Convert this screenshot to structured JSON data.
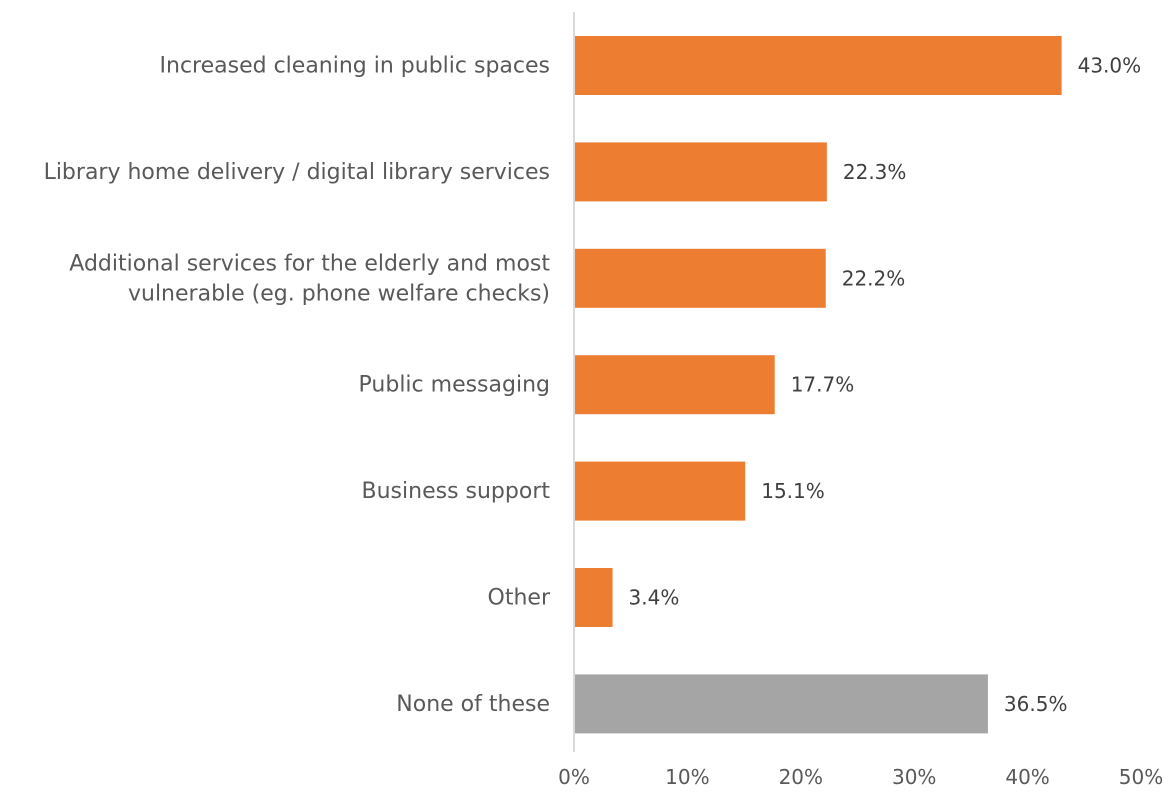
{
  "chart_data": {
    "type": "bar",
    "orientation": "horizontal",
    "categories": [
      [
        "Increased cleaning in public spaces"
      ],
      [
        "Library home delivery / digital library services"
      ],
      [
        "Additional services for the elderly and most",
        "vulnerable (eg. phone welfare checks)"
      ],
      [
        "Public messaging"
      ],
      [
        "Business support"
      ],
      [
        "Other"
      ],
      [
        "None of these"
      ]
    ],
    "values": [
      43.0,
      22.3,
      22.2,
      17.7,
      15.1,
      3.4,
      36.5
    ],
    "value_labels": [
      "43.0%",
      "22.3%",
      "22.2%",
      "17.7%",
      "15.1%",
      "3.4%",
      "36.5%"
    ],
    "bar_colors": [
      "#ED7D31",
      "#ED7D31",
      "#ED7D31",
      "#ED7D31",
      "#ED7D31",
      "#ED7D31",
      "#A5A5A5"
    ],
    "xlim": [
      0,
      50
    ],
    "xticks": [
      0,
      10,
      20,
      30,
      40,
      50
    ],
    "xtick_labels": [
      "0%",
      "10%",
      "20%",
      "30%",
      "40%",
      "50%"
    ],
    "title": "",
    "xlabel": "",
    "ylabel": "",
    "grid": false,
    "legend": "none",
    "colors": {
      "highlight": "#ED7D31",
      "neutral": "#A5A5A5",
      "axis": "#D9D9D9",
      "text": "#595959"
    }
  }
}
